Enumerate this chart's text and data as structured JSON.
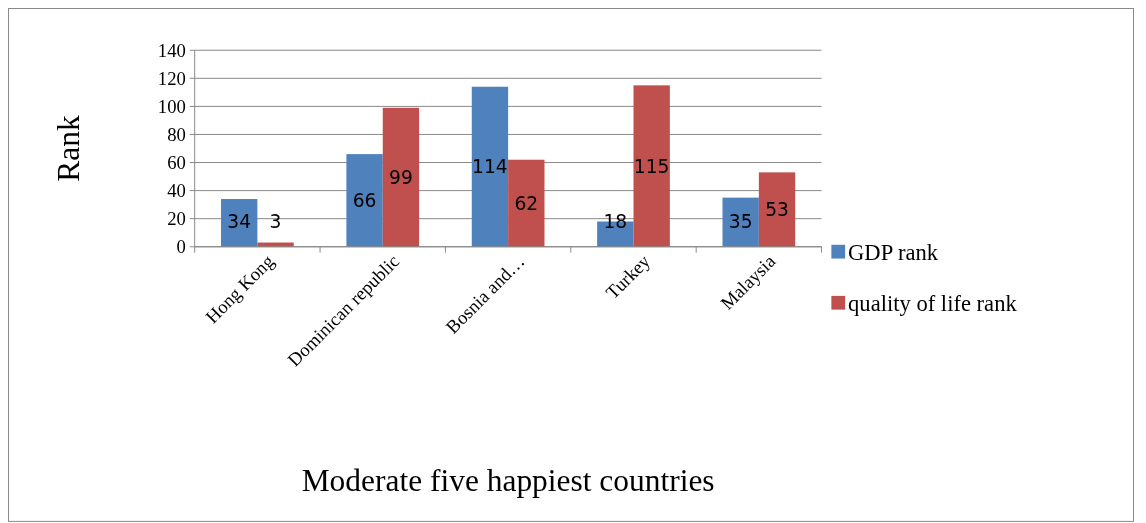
{
  "chart_data": {
    "type": "bar",
    "xlabel": "Moderate five happiest countries",
    "ylabel": "Rank",
    "categories": [
      "Hong Kong",
      "Dominican republic",
      "Bosnia and…",
      "Turkey",
      "Malaysia"
    ],
    "series": [
      {
        "name": "GDP rank",
        "color": "#4f81bd",
        "values": [
          34,
          66,
          114,
          18,
          35
        ]
      },
      {
        "name": "quality of life rank",
        "color": "#c0504d",
        "values": [
          3,
          99,
          62,
          115,
          53
        ]
      }
    ],
    "ylim": [
      0,
      140
    ],
    "yticks": [
      0,
      20,
      40,
      60,
      80,
      100,
      120,
      140
    ],
    "grid": "y",
    "legend": "right",
    "data_labels": true
  }
}
